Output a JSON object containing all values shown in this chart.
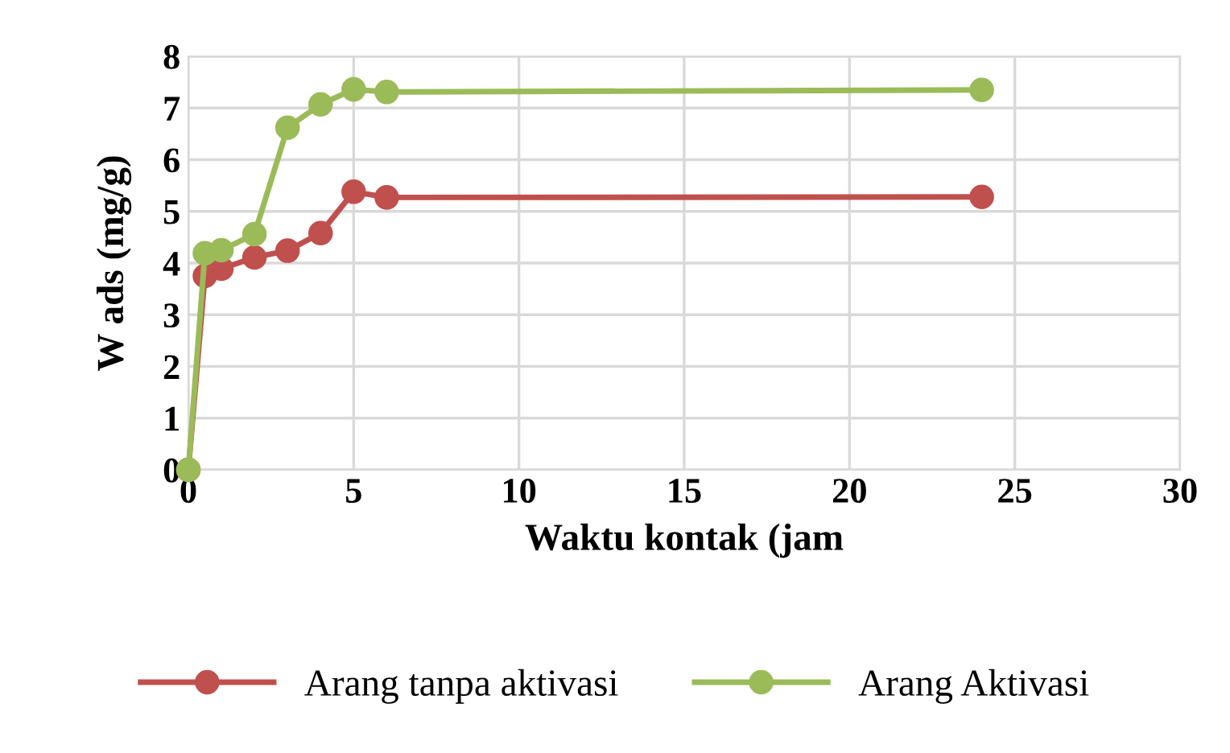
{
  "chart_data": {
    "type": "line",
    "xlabel": "Waktu kontak (jam",
    "ylabel": "W ads (mg/g)",
    "x": [
      0,
      0.5,
      1,
      2,
      3,
      4,
      5,
      6,
      24
    ],
    "series": [
      {
        "name": "Arang tanpa aktivasi",
        "color": "#c0504d",
        "values": [
          0,
          3.75,
          3.89,
          4.11,
          4.24,
          4.58,
          5.38,
          5.27,
          5.28
        ]
      },
      {
        "name": "Arang Aktivasi",
        "color": "#9bbb59",
        "values": [
          0,
          4.19,
          4.25,
          4.56,
          6.62,
          7.07,
          7.36,
          7.31,
          7.35
        ]
      }
    ],
    "xlim": [
      0,
      30
    ],
    "xticks": [
      0,
      5,
      10,
      15,
      20,
      25,
      30
    ],
    "ylim": [
      0,
      8
    ],
    "yticks": [
      0,
      1,
      2,
      3,
      4,
      5,
      6,
      7,
      8
    ],
    "grid": true,
    "legend": "bottom",
    "marker": "circle",
    "line_style": "solid"
  }
}
